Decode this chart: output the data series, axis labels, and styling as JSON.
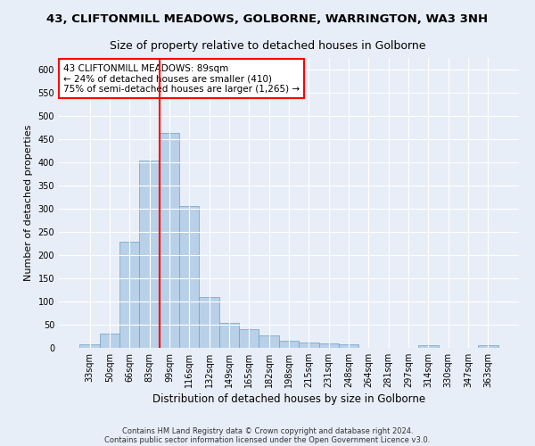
{
  "title1": "43, CLIFTONMILL MEADOWS, GOLBORNE, WARRINGTON, WA3 3NH",
  "title2": "Size of property relative to detached houses in Golborne",
  "xlabel": "Distribution of detached houses by size in Golborne",
  "ylabel": "Number of detached properties",
  "footnote1": "Contains HM Land Registry data © Crown copyright and database right 2024.",
  "footnote2": "Contains public sector information licensed under the Open Government Licence v3.0.",
  "categories": [
    "33sqm",
    "50sqm",
    "66sqm",
    "83sqm",
    "99sqm",
    "116sqm",
    "132sqm",
    "149sqm",
    "165sqm",
    "182sqm",
    "198sqm",
    "215sqm",
    "231sqm",
    "248sqm",
    "264sqm",
    "281sqm",
    "297sqm",
    "314sqm",
    "330sqm",
    "347sqm",
    "363sqm"
  ],
  "values": [
    7,
    30,
    228,
    403,
    463,
    305,
    110,
    54,
    40,
    27,
    15,
    12,
    10,
    7,
    0,
    0,
    0,
    5,
    0,
    0,
    5
  ],
  "bar_color": "#b8d0e8",
  "bar_edge_color": "#6a9fc8",
  "bar_width": 1.0,
  "vline_color": "red",
  "vline_pos": 3.5,
  "annotation_text": "43 CLIFTONMILL MEADOWS: 89sqm\n← 24% of detached houses are smaller (410)\n75% of semi-detached houses are larger (1,265) →",
  "annotation_box_color": "red",
  "annotation_box_fill": "white",
  "ylim": [
    0,
    625
  ],
  "yticks": [
    0,
    50,
    100,
    150,
    200,
    250,
    300,
    350,
    400,
    450,
    500,
    550,
    600
  ],
  "bg_color": "#e8eef8",
  "axes_bg_color": "#e8eef8",
  "grid_color": "white",
  "title1_fontsize": 9.5,
  "title2_fontsize": 9,
  "xlabel_fontsize": 8.5,
  "ylabel_fontsize": 8,
  "tick_fontsize": 7,
  "annotation_fontsize": 7.5,
  "footnote_fontsize": 6
}
